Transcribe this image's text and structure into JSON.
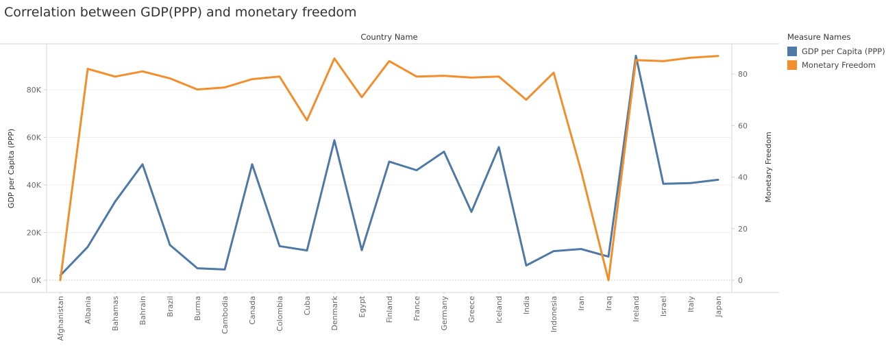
{
  "title": "Correlation between GDP(PPP) and monetary freedom",
  "legend": {
    "title": "Measure Names",
    "items": [
      {
        "label": "GDP per Capita (PPP)",
        "color": "#4e79a7"
      },
      {
        "label": "Monetary Freedom",
        "color": "#f28e2b"
      }
    ]
  },
  "chart_data": {
    "type": "line",
    "title": "Correlation between GDP(PPP) and monetary freedom",
    "xlabel": "Country Name",
    "categories": [
      "Afghanistan",
      "Albania",
      "Bahamas",
      "Bahrain",
      "Brazil",
      "Burma",
      "Cambodia",
      "Canada",
      "Colombia",
      "Cuba",
      "Denmark",
      "Egypt",
      "Finland",
      "France",
      "Germany",
      "Greece",
      "Iceland",
      "India",
      "Indonesia",
      "Iran",
      "Iraq",
      "Ireland",
      "Israel",
      "Italy",
      "Japan"
    ],
    "left_axis": {
      "label": "GDP per Capita (PPP)",
      "ylim": [
        0,
        95000
      ],
      "ticks": [
        0,
        20000,
        40000,
        60000,
        80000
      ],
      "tick_labels": [
        "0K",
        "20K",
        "40K",
        "60K",
        "80K"
      ]
    },
    "right_axis": {
      "label": "Monetary Freedom",
      "ylim": [
        0,
        92
      ],
      "ticks": [
        0,
        20,
        40,
        60,
        80
      ],
      "tick_labels": [
        "0",
        "20",
        "40",
        "60",
        "80"
      ]
    },
    "series": [
      {
        "name": "GDP per Capita (PPP)",
        "axis": "left",
        "color": "#4e79a7",
        "values": [
          2000,
          14000,
          33000,
          48700,
          14800,
          5000,
          4500,
          48700,
          14300,
          12500,
          58800,
          12600,
          49800,
          46200,
          54000,
          28700,
          55900,
          6200,
          12200,
          13100,
          9900,
          94300,
          40500,
          40800,
          42200
        ]
      },
      {
        "name": "Monetary Freedom",
        "axis": "right",
        "color": "#f28e2b",
        "values": [
          0,
          82,
          79,
          81,
          78.3,
          74,
          74.8,
          78,
          79,
          62,
          86,
          71,
          85,
          79,
          79.3,
          78.6,
          79,
          70,
          80.5,
          42.5,
          0,
          85.4,
          85,
          86.3,
          87
        ]
      }
    ],
    "grid": true,
    "legend_position": "right"
  }
}
